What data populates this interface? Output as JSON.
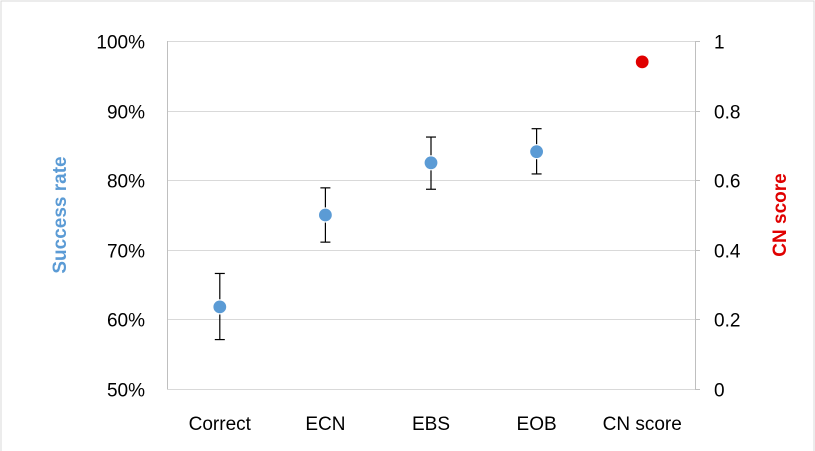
{
  "chart_data": {
    "type": "scatter",
    "categories": [
      "Correct",
      "ECN",
      "EBS",
      "EOB",
      "CN score"
    ],
    "series": [
      {
        "axis": "left",
        "color": "#5b9bd5",
        "points": [
          {
            "category": "Correct",
            "value": 0.618,
            "err_low": 0.571,
            "err_high": 0.666
          },
          {
            "category": "ECN",
            "value": 0.75,
            "err_low": 0.711,
            "err_high": 0.789
          },
          {
            "category": "EBS",
            "value": 0.825,
            "err_low": 0.787,
            "err_high": 0.862
          },
          {
            "category": "EOB",
            "value": 0.841,
            "err_low": 0.809,
            "err_high": 0.874
          }
        ]
      },
      {
        "axis": "right",
        "color": "#e00000",
        "points": [
          {
            "category": "CN score",
            "value": 0.94,
            "err_low": 0.93,
            "err_high": 0.955
          }
        ]
      }
    ],
    "y_left": {
      "label": "Success rate",
      "label_color": "#5b9bd5",
      "range": [
        0.5,
        1.0
      ],
      "ticks": [
        0.5,
        0.6,
        0.7,
        0.8,
        0.9,
        1.0
      ],
      "tick_labels": [
        "50%",
        "60%",
        "70%",
        "80%",
        "90%",
        "100%"
      ]
    },
    "y_right": {
      "label": "CN score",
      "label_color": "#e00000",
      "range": [
        0,
        1
      ],
      "ticks": [
        0,
        0.2,
        0.4,
        0.6,
        0.8,
        1
      ],
      "tick_labels": [
        "0",
        "0.2",
        "0.4",
        "0.6",
        "0.8",
        "1"
      ]
    },
    "grid": true
  }
}
